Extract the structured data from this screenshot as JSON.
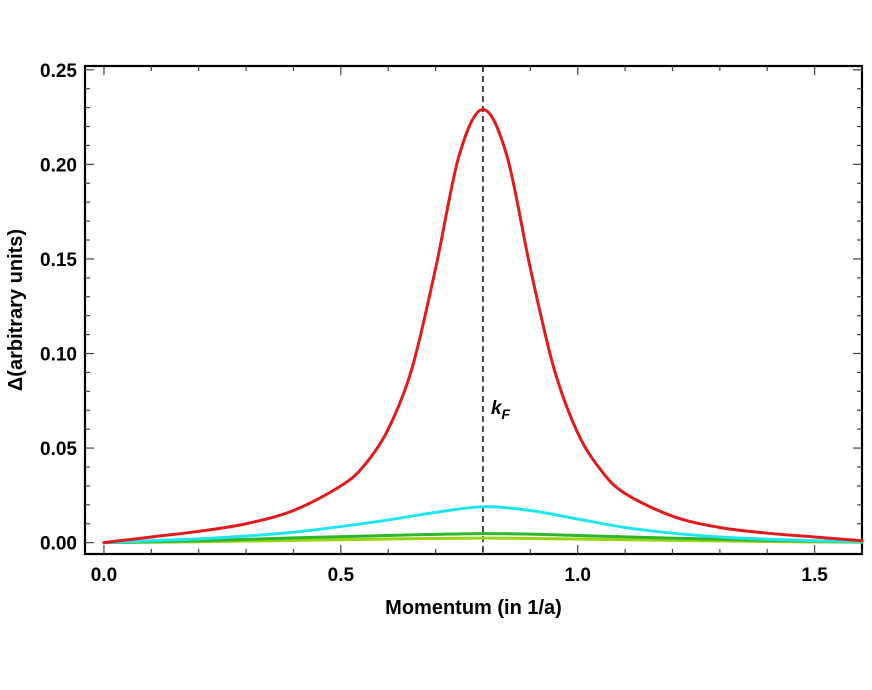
{
  "chart_data": {
    "type": "line",
    "title": "",
    "xlabel": "Momentum (in 1/a)",
    "ylabel": "Δ(arbitrary units)",
    "xlim": [
      -0.04,
      1.6
    ],
    "ylim": [
      -0.006,
      0.252
    ],
    "xticks": [
      0.0,
      0.5,
      1.0,
      1.5
    ],
    "xtick_labels": [
      "0.0",
      "0.5",
      "1.0",
      "1.5"
    ],
    "yticks": [
      0.0,
      0.05,
      0.1,
      0.15,
      0.2,
      0.25
    ],
    "ytick_labels": [
      "0.00",
      "0.05",
      "0.10",
      "0.15",
      "0.20",
      "0.25"
    ],
    "grid": false,
    "legend": "none",
    "annotation": {
      "x": 0.8,
      "y": 0.068,
      "text_main": "k",
      "text_sub": "F",
      "line": "dashed vertical at x = 0.8"
    },
    "series": [
      {
        "color": "#e31a1c",
        "x": [
          0.0,
          0.1,
          0.2,
          0.3,
          0.4,
          0.5,
          0.55,
          0.6,
          0.65,
          0.7,
          0.75,
          0.8,
          0.85,
          0.9,
          0.95,
          1.0,
          1.05,
          1.1,
          1.2,
          1.3,
          1.4,
          1.5,
          1.6
        ],
        "values": [
          0.0,
          0.003,
          0.006,
          0.01,
          0.017,
          0.03,
          0.041,
          0.06,
          0.092,
          0.145,
          0.205,
          0.229,
          0.205,
          0.145,
          0.092,
          0.058,
          0.038,
          0.026,
          0.014,
          0.008,
          0.005,
          0.003,
          0.001
        ]
      },
      {
        "color": "#1ee6f0",
        "x": [
          0.0,
          0.1,
          0.2,
          0.3,
          0.4,
          0.5,
          0.6,
          0.7,
          0.8,
          0.9,
          1.0,
          1.1,
          1.2,
          1.3,
          1.4,
          1.5,
          1.6
        ],
        "values": [
          0.0,
          0.001,
          0.002,
          0.0035,
          0.0055,
          0.0085,
          0.012,
          0.016,
          0.019,
          0.017,
          0.0125,
          0.008,
          0.005,
          0.003,
          0.0018,
          0.001,
          0.0005
        ]
      },
      {
        "color": "#2db52d",
        "x": [
          0.0,
          0.2,
          0.4,
          0.6,
          0.7,
          0.8,
          0.9,
          1.0,
          1.2,
          1.4,
          1.6
        ],
        "values": [
          0.0,
          0.001,
          0.0025,
          0.0038,
          0.0044,
          0.0048,
          0.0045,
          0.0038,
          0.0024,
          0.0012,
          0.0004
        ]
      },
      {
        "color": "#9ad40f",
        "x": [
          0.0,
          0.2,
          0.4,
          0.6,
          0.7,
          0.8,
          0.9,
          1.0,
          1.2,
          1.4,
          1.6
        ],
        "values": [
          0.0,
          0.0005,
          0.0012,
          0.0019,
          0.0022,
          0.0024,
          0.0022,
          0.0019,
          0.0012,
          0.0006,
          0.0002
        ]
      }
    ]
  }
}
